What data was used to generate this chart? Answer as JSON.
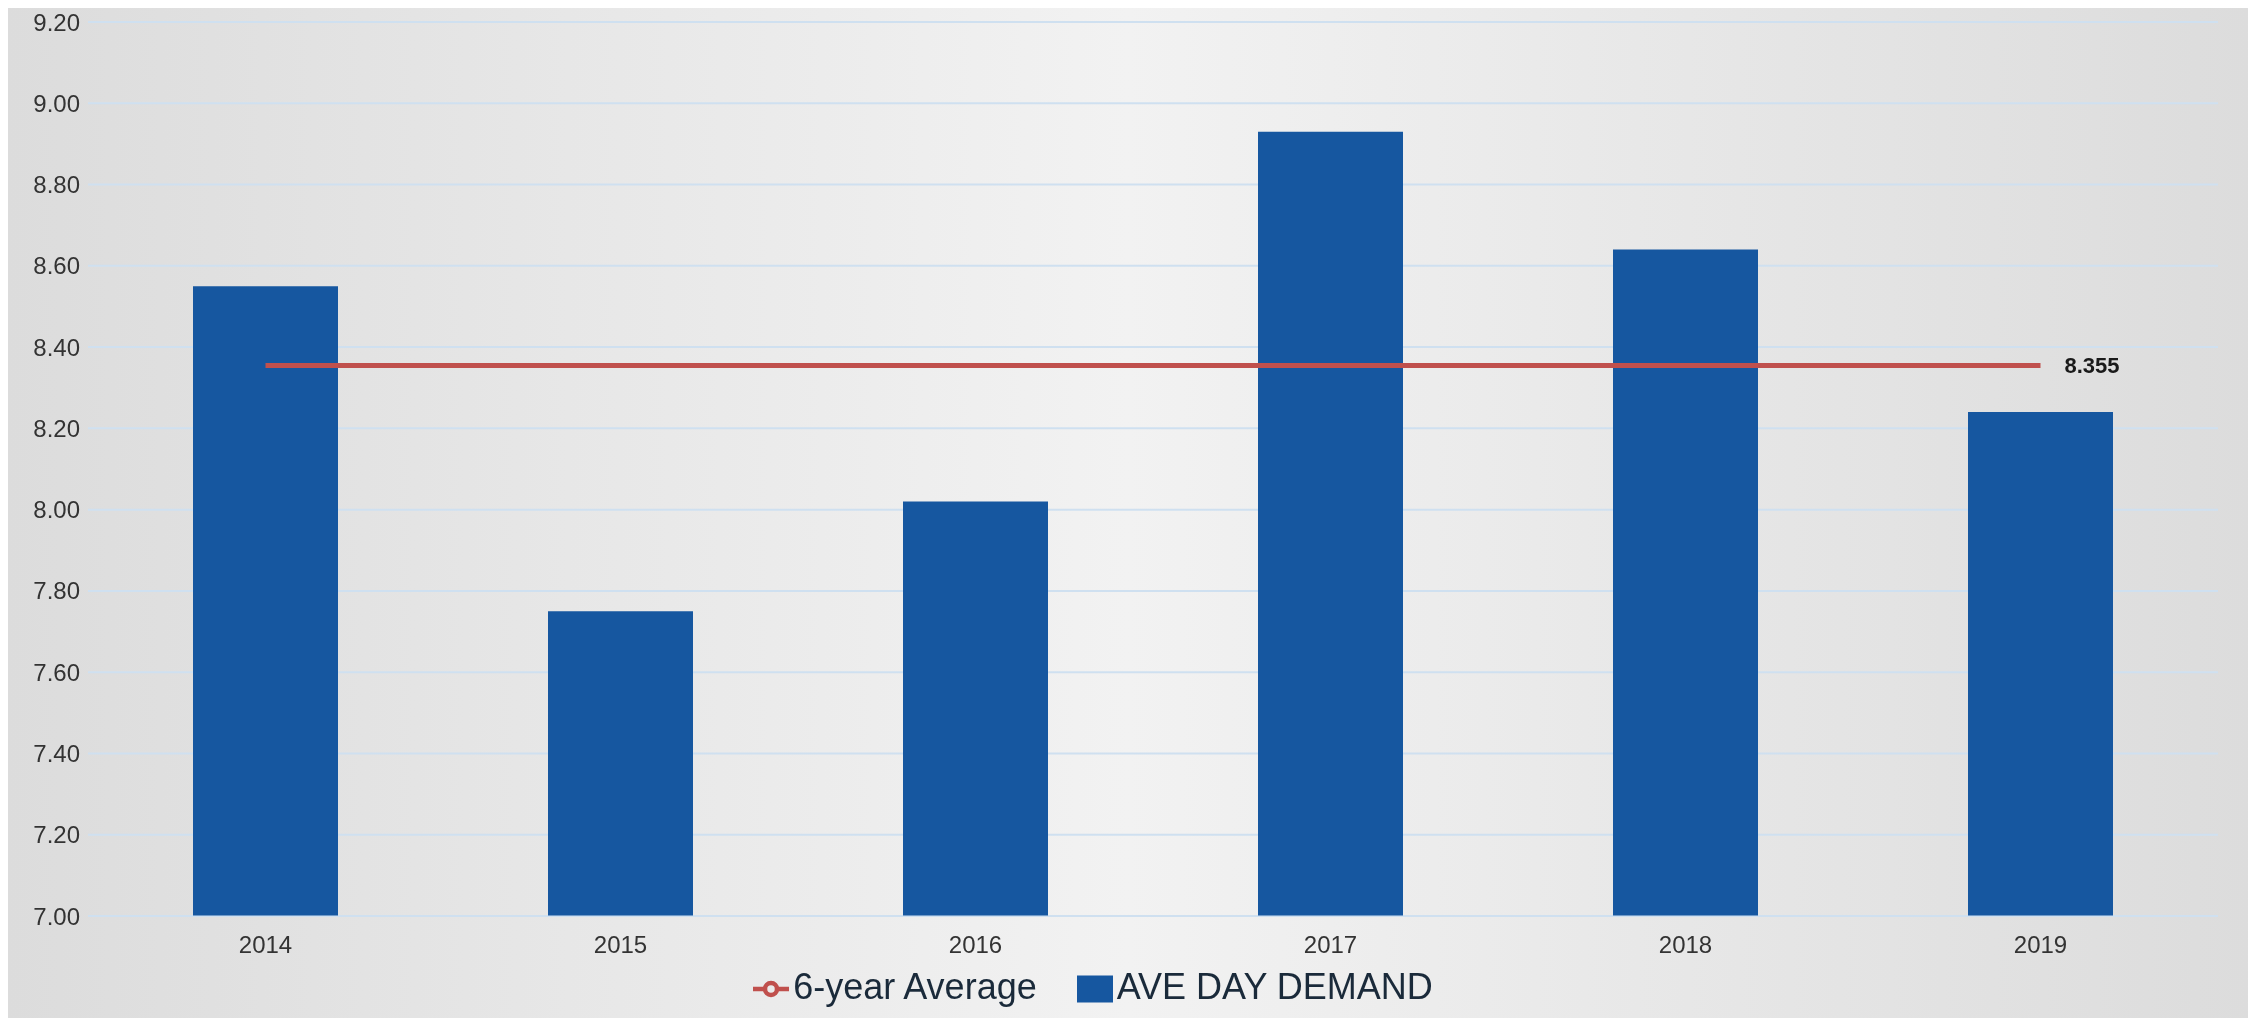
{
  "chart_data": {
    "type": "bar",
    "categories": [
      "2014",
      "2015",
      "2016",
      "2017",
      "2018",
      "2019"
    ],
    "series": [
      {
        "name": "AVE DAY DEMAND",
        "color": "#1657a0",
        "values": [
          8.55,
          7.75,
          8.02,
          8.93,
          8.64,
          8.24
        ]
      },
      {
        "name": "6-year Average",
        "type": "line",
        "color": "#c0504d",
        "values": [
          8.355,
          8.355,
          8.355,
          8.355,
          8.355,
          8.355
        ],
        "value_labels": [
          null,
          null,
          null,
          null,
          null,
          "8.355"
        ]
      }
    ],
    "ylim": [
      7.0,
      9.2
    ],
    "yticks": [
      {
        "value": 7.0,
        "label": "7.00"
      },
      {
        "value": 7.2,
        "label": "7.20"
      },
      {
        "value": 7.4,
        "label": "7.40"
      },
      {
        "value": 7.6,
        "label": "7.60"
      },
      {
        "value": 7.8,
        "label": "7.80"
      },
      {
        "value": 8.0,
        "label": "8.00"
      },
      {
        "value": 8.2,
        "label": "8.20"
      },
      {
        "value": 8.4,
        "label": "8.40"
      },
      {
        "value": 8.6,
        "label": "8.60"
      },
      {
        "value": 8.8,
        "label": "8.80"
      },
      {
        "value": 9.0,
        "label": "9.00"
      },
      {
        "value": 9.2,
        "label": "9.20"
      }
    ],
    "grid": "y",
    "legend": "bottom",
    "marker": "none"
  }
}
